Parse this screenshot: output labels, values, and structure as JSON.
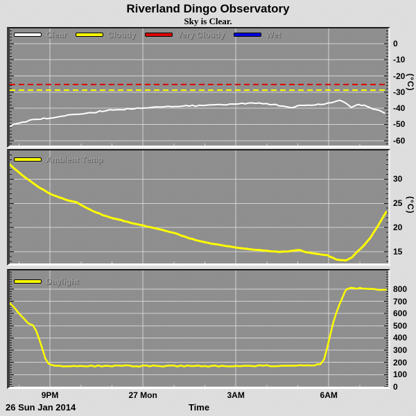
{
  "header": {
    "title": "Riverland Dingo Observatory",
    "subtitle": "Sky is Clear."
  },
  "footer": {
    "date": "26 Sun Jan 2014",
    "xlabel": "Time"
  },
  "colors": {
    "outer_bg": [
      "#f2f2f2",
      "#c9c9c9"
    ],
    "plot_bg": [
      "#7e7e7e",
      "#9f9f9f"
    ],
    "gridline": "#dcdcdc",
    "tick_dark": "#141414",
    "tick_light": "#d6d6d6",
    "legend_text": "#9e9e9e",
    "clear_white": "#ffffff",
    "cloudy_yellow": "#ffff00",
    "very_cloudy_red": "#dd0000",
    "wet_blue": "#0000dd"
  },
  "x_axis": {
    "xlim": [
      19.7,
      31.92
    ],
    "major_ticks": [
      {
        "t": 21,
        "label": "9PM"
      },
      {
        "t": 24,
        "label": "27 Mon"
      },
      {
        "t": 27,
        "label": "3AM"
      },
      {
        "t": 30,
        "label": "6AM"
      }
    ],
    "minor_ticks": [
      20,
      22,
      23,
      25,
      26,
      28,
      29,
      31
    ]
  },
  "chart_data": [
    {
      "name": "sky-conditions",
      "type": "line",
      "ylim": [
        9.4,
        -63.1
      ],
      "unit_label": "(°C)",
      "ytick_minor_step": 2,
      "yticks_major": [
        {
          "v": 0,
          "label": "0"
        },
        {
          "v": -10,
          "label": "-10"
        },
        {
          "v": -20,
          "label": "-20"
        },
        {
          "v": -30,
          "label": "-30"
        },
        {
          "v": -40,
          "label": "-40"
        },
        {
          "v": -50,
          "label": "-50"
        },
        {
          "v": -60,
          "label": "-60"
        }
      ],
      "legend": [
        {
          "label": "Clear",
          "color": "#ffffff"
        },
        {
          "label": "Cloudy",
          "color": "#ffff00"
        },
        {
          "label": "Very Cloudy",
          "color": "#dd0000"
        },
        {
          "label": "Wet",
          "color": "#0000dd"
        }
      ],
      "thresholds": [
        {
          "name": "very-cloudy-threshold",
          "value": -25.3,
          "color": "#dd0000"
        },
        {
          "name": "cloudy-threshold",
          "value": -28.8,
          "color": "#ffff00"
        }
      ],
      "series": [
        {
          "name": "Clear",
          "color": "#ffffff",
          "width": 2,
          "noise": 0.9,
          "points": [
            [
              19.72,
              -51
            ],
            [
              19.9,
              -49.5
            ],
            [
              20.1,
              -48.8
            ],
            [
              20.35,
              -47.5
            ],
            [
              20.6,
              -46.8
            ],
            [
              21.0,
              -46.0
            ],
            [
              21.35,
              -44.8
            ],
            [
              21.7,
              -44.0
            ],
            [
              22.05,
              -43.2
            ],
            [
              22.4,
              -42.5
            ],
            [
              22.7,
              -41.7
            ],
            [
              23.05,
              -41.0
            ],
            [
              23.4,
              -40.6
            ],
            [
              23.7,
              -40.2
            ],
            [
              24.05,
              -39.7
            ],
            [
              24.4,
              -39.4
            ],
            [
              24.7,
              -39.0
            ],
            [
              25.05,
              -38.6
            ],
            [
              25.4,
              -38.4
            ],
            [
              25.7,
              -38.5
            ],
            [
              26.05,
              -38.2
            ],
            [
              26.4,
              -38.0
            ],
            [
              26.7,
              -37.6
            ],
            [
              27.0,
              -37.3
            ],
            [
              27.4,
              -37.0
            ],
            [
              27.75,
              -37.0
            ],
            [
              28.0,
              -37.3
            ],
            [
              28.3,
              -37.8
            ],
            [
              28.5,
              -38.7
            ],
            [
              28.8,
              -39.5
            ],
            [
              29.0,
              -38.3
            ],
            [
              29.3,
              -38.2
            ],
            [
              29.55,
              -38.0
            ],
            [
              29.85,
              -37.3
            ],
            [
              30.1,
              -36.2
            ],
            [
              30.35,
              -34.9
            ],
            [
              30.5,
              -36.4
            ],
            [
              30.72,
              -39.3
            ],
            [
              30.95,
              -37.6
            ],
            [
              31.15,
              -38.4
            ],
            [
              31.32,
              -39.6
            ],
            [
              31.5,
              -41.0
            ],
            [
              31.65,
              -41.8
            ],
            [
              31.8,
              -43.0
            ]
          ]
        }
      ]
    },
    {
      "name": "ambient-temp",
      "type": "line",
      "ylim": [
        35.9,
        12.6
      ],
      "unit_label": "(°C)",
      "ytick_minor_step": 1,
      "yticks_major": [
        {
          "v": 30,
          "label": "30"
        },
        {
          "v": 25,
          "label": "25"
        },
        {
          "v": 20,
          "label": "20"
        },
        {
          "v": 15,
          "label": "15"
        }
      ],
      "legend": [
        {
          "label": "Ambient Temp",
          "color": "#ffff00"
        }
      ],
      "thresholds": [],
      "series": [
        {
          "name": "Ambient Temp",
          "color": "#ffff00",
          "width": 3,
          "noise": 0.3,
          "points": [
            [
              19.7,
              33.0
            ],
            [
              19.95,
              31.6
            ],
            [
              20.2,
              30.3
            ],
            [
              20.45,
              29.2
            ],
            [
              20.7,
              28.1
            ],
            [
              21.0,
              27.0
            ],
            [
              21.3,
              26.2
            ],
            [
              21.6,
              25.6
            ],
            [
              21.85,
              25.2
            ],
            [
              22.1,
              24.3
            ],
            [
              22.4,
              23.4
            ],
            [
              22.7,
              22.6
            ],
            [
              23.0,
              22.0
            ],
            [
              23.3,
              21.5
            ],
            [
              23.6,
              21.0
            ],
            [
              24.0,
              20.4
            ],
            [
              24.5,
              19.7
            ],
            [
              25.0,
              18.9
            ],
            [
              25.5,
              17.8
            ],
            [
              25.9,
              17.1
            ],
            [
              26.3,
              16.6
            ],
            [
              26.7,
              16.2
            ],
            [
              27.0,
              15.9
            ],
            [
              27.5,
              15.5
            ],
            [
              28.0,
              15.2
            ],
            [
              28.4,
              15.0
            ],
            [
              28.7,
              15.1
            ],
            [
              29.05,
              15.4
            ],
            [
              29.25,
              14.9
            ],
            [
              29.6,
              14.6
            ],
            [
              29.95,
              14.3
            ],
            [
              30.25,
              13.4
            ],
            [
              30.55,
              13.2
            ],
            [
              30.75,
              13.9
            ],
            [
              30.95,
              15.2
            ],
            [
              31.15,
              16.4
            ],
            [
              31.35,
              18.0
            ],
            [
              31.55,
              20.0
            ],
            [
              31.72,
              21.8
            ],
            [
              31.85,
              23.2
            ]
          ]
        }
      ]
    },
    {
      "name": "daylight",
      "type": "line",
      "ylim": [
        953,
        0
      ],
      "unit_label": "",
      "ytick_minor_step": 20,
      "yticks_major": [
        {
          "v": 800,
          "label": "800"
        },
        {
          "v": 700,
          "label": "700"
        },
        {
          "v": 600,
          "label": "600"
        },
        {
          "v": 500,
          "label": "500"
        },
        {
          "v": 400,
          "label": "400"
        },
        {
          "v": 300,
          "label": "300"
        },
        {
          "v": 200,
          "label": "200"
        },
        {
          "v": 100,
          "label": "100"
        },
        {
          "v": 0,
          "label": "0"
        }
      ],
      "legend": [
        {
          "label": "Daylight",
          "color": "#ffff00"
        }
      ],
      "thresholds": [],
      "series": [
        {
          "name": "Daylight",
          "color": "#ffff00",
          "width": 2.5,
          "noise": 1.0,
          "points": [
            [
              19.7,
              680
            ],
            [
              19.85,
              645
            ],
            [
              20.0,
              600
            ],
            [
              20.15,
              560
            ],
            [
              20.3,
              525
            ],
            [
              20.45,
              505
            ],
            [
              20.55,
              460
            ],
            [
              20.65,
              390
            ],
            [
              20.75,
              310
            ],
            [
              20.85,
              230
            ],
            [
              20.95,
              190
            ],
            [
              21.05,
              175
            ],
            [
              21.3,
              170
            ],
            [
              22.0,
              170
            ],
            [
              23.0,
              172
            ],
            [
              24.0,
              170
            ],
            [
              25.0,
              172
            ],
            [
              26.0,
              170
            ],
            [
              27.0,
              173
            ],
            [
              27.5,
              172
            ],
            [
              28.0,
              174
            ],
            [
              28.5,
              172
            ],
            [
              29.0,
              176
            ],
            [
              29.3,
              174
            ],
            [
              29.55,
              176
            ],
            [
              29.73,
              185
            ],
            [
              29.85,
              230
            ],
            [
              29.95,
              320
            ],
            [
              30.05,
              430
            ],
            [
              30.15,
              530
            ],
            [
              30.25,
              610
            ],
            [
              30.35,
              680
            ],
            [
              30.45,
              735
            ],
            [
              30.52,
              775
            ],
            [
              30.58,
              800
            ],
            [
              30.62,
              806
            ],
            [
              30.7,
              808
            ],
            [
              30.9,
              806
            ],
            [
              31.1,
              804
            ],
            [
              31.3,
              800
            ],
            [
              31.5,
              795
            ],
            [
              31.7,
              792
            ],
            [
              31.85,
              796
            ]
          ]
        }
      ]
    }
  ]
}
